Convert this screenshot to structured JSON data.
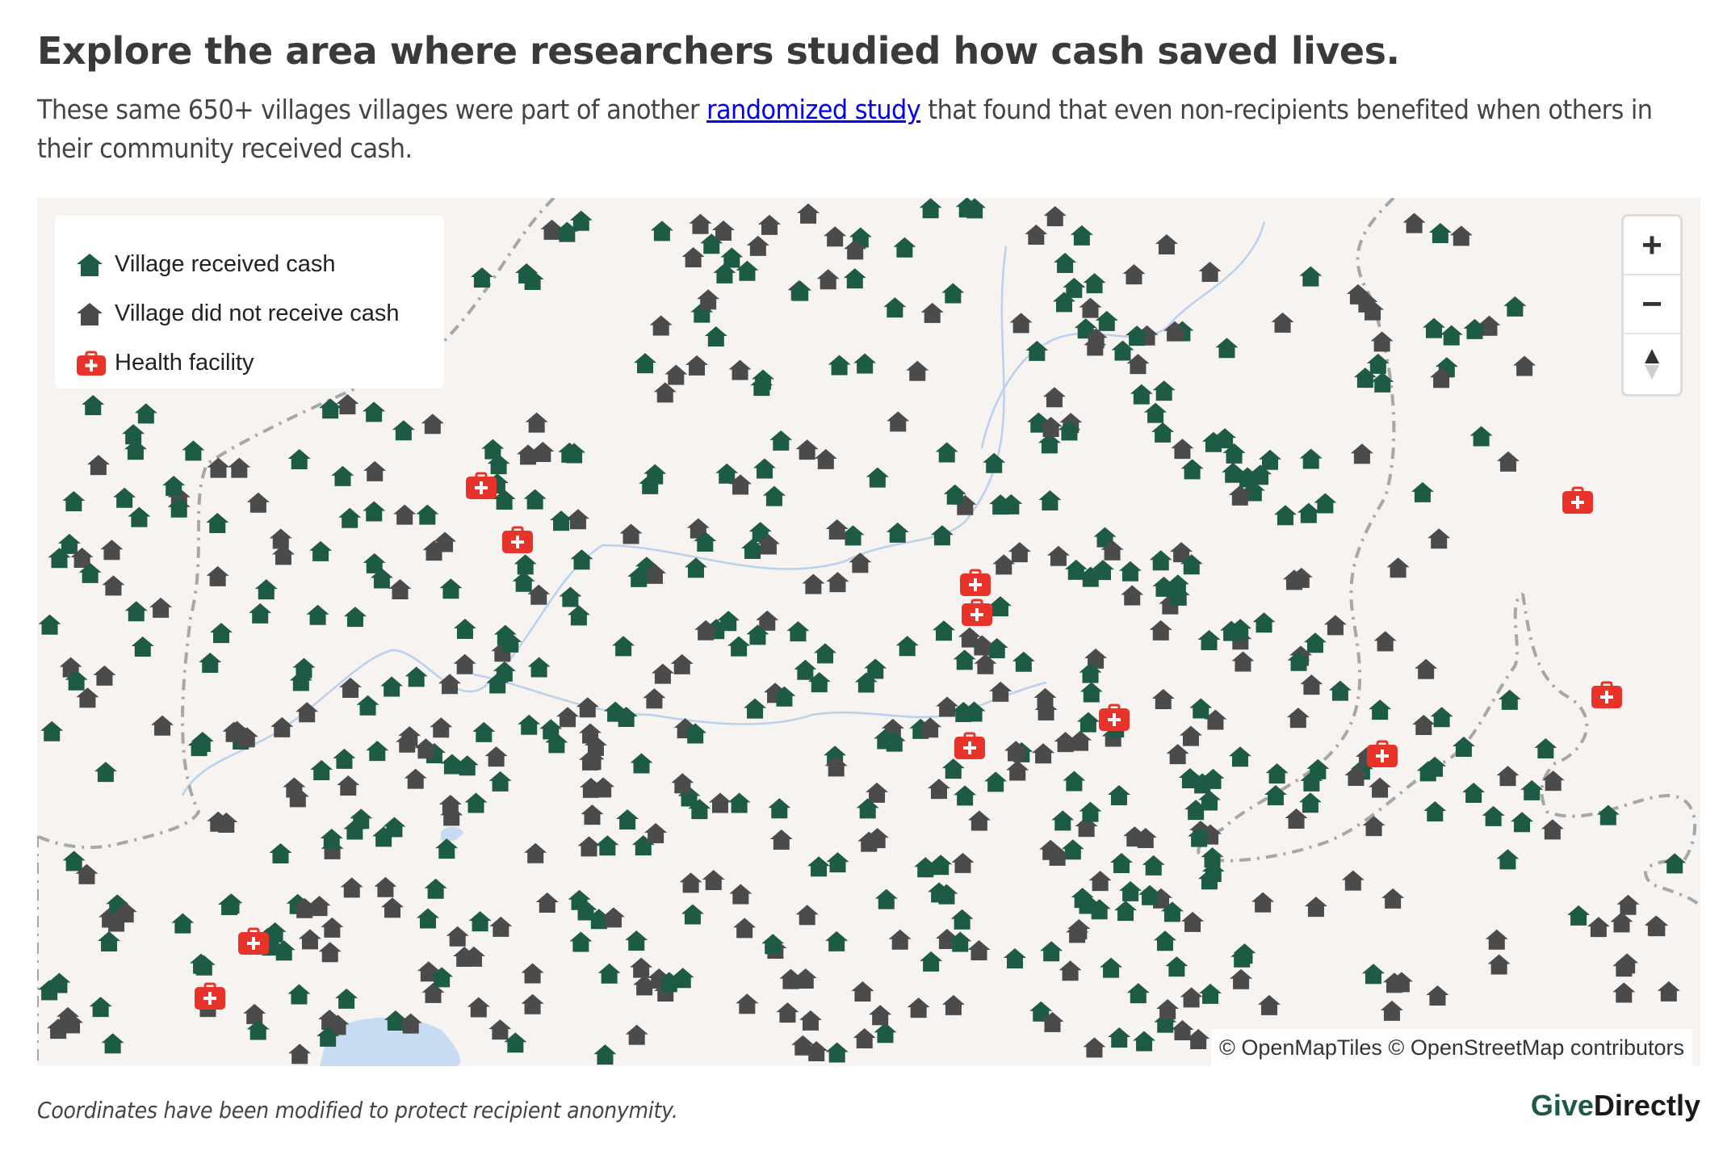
{
  "headline": "Explore the area where researchers studied how cash saved lives.",
  "subhead": {
    "before": "These same 650+ villages villages were part of another ",
    "link": "randomized study",
    "after": " that found that even non-recipients benefited when others in their community received cash."
  },
  "legend": {
    "received": "Village received cash",
    "not_received": "Village did not receive cash",
    "health": "Health facility"
  },
  "zoom": {
    "in": "+",
    "out": "−",
    "compass": "▲"
  },
  "attribution": "© OpenMapTiles © OpenStreetMap contributors",
  "footnote": "Coordinates have been modified to protect recipient anonymity.",
  "brand": {
    "give": "Give",
    "directly": "Directly"
  },
  "colors": {
    "received": "#1e5b45",
    "not_received": "#4b4b4b",
    "health": "#e8332a",
    "land": "#f6f3f0",
    "water": "#c6dcf2",
    "river": "#b9d1ec",
    "border": "#a7a7a7"
  },
  "icons": {
    "village": "house-icon",
    "health": "medical-kit-icon"
  }
}
